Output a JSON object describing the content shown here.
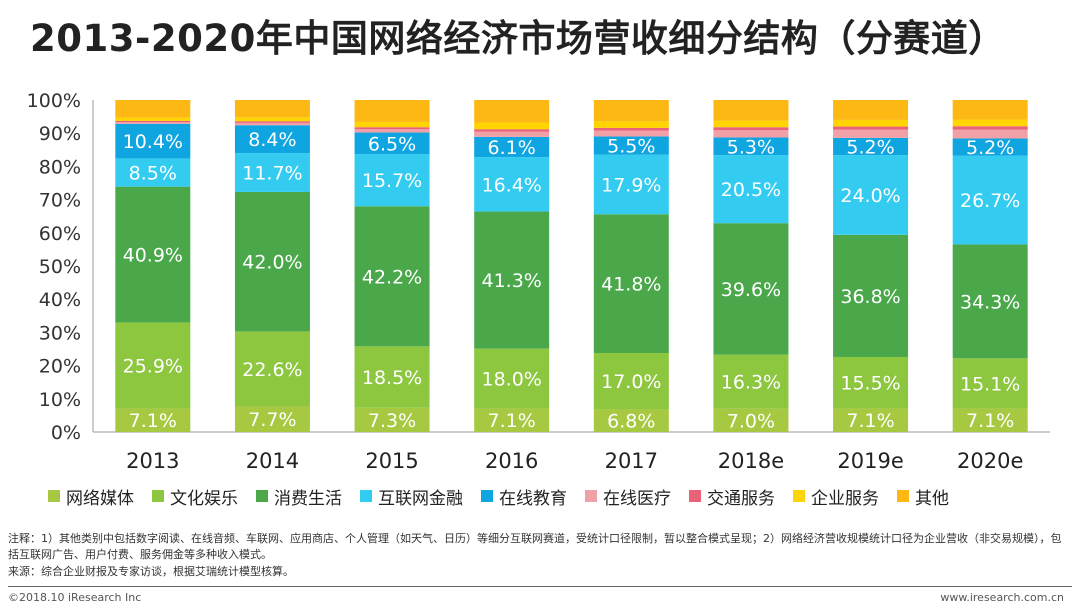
{
  "title": "2013-2020年中国网络经济市场营收细分结构（分赛道）",
  "chart_data": {
    "type": "bar",
    "stacked": true,
    "title": "2013-2020年中国网络经济市场营收细分结构（分赛道）",
    "categories": [
      "2013",
      "2014",
      "2015",
      "2016",
      "2017",
      "2018e",
      "2019e",
      "2020e"
    ],
    "y_ticks": [
      "0%",
      "10%",
      "20%",
      "30%",
      "40%",
      "50%",
      "60%",
      "70%",
      "80%",
      "90%",
      "100%"
    ],
    "ylim": [
      0,
      100
    ],
    "legend_position": "bottom",
    "series": [
      {
        "name": "网络媒体",
        "color": "#a7c942",
        "values": [
          7.1,
          7.7,
          7.3,
          7.1,
          6.8,
          7.0,
          7.1,
          7.1
        ],
        "labels": [
          "7.1%",
          "7.7%",
          "7.3%",
          "7.1%",
          "6.8%",
          "7.0%",
          "7.1%",
          "7.1%"
        ]
      },
      {
        "name": "文化娱乐",
        "color": "#8dc63f",
        "values": [
          25.9,
          22.6,
          18.5,
          18.0,
          17.0,
          16.3,
          15.5,
          15.1
        ],
        "labels": [
          "25.9%",
          "22.6%",
          "18.5%",
          "18.0%",
          "17.0%",
          "16.3%",
          "15.5%",
          "15.1%"
        ]
      },
      {
        "name": "消费生活",
        "color": "#4aa84a",
        "values": [
          40.9,
          42.0,
          42.2,
          41.3,
          41.8,
          39.6,
          36.8,
          34.3
        ],
        "labels": [
          "40.9%",
          "42.0%",
          "42.2%",
          "41.3%",
          "41.8%",
          "39.6%",
          "36.8%",
          "34.3%"
        ]
      },
      {
        "name": "互联网金融",
        "color": "#33ccf0",
        "values": [
          8.5,
          11.7,
          15.7,
          16.4,
          17.9,
          20.5,
          24.0,
          26.7
        ],
        "labels": [
          "8.5%",
          "11.7%",
          "15.7%",
          "16.4%",
          "17.9%",
          "20.5%",
          "24.0%",
          "26.7%"
        ]
      },
      {
        "name": "在线教育",
        "color": "#0fa5e0",
        "values": [
          10.4,
          8.4,
          6.5,
          6.1,
          5.5,
          5.3,
          5.2,
          5.2
        ],
        "labels": [
          "10.4%",
          "8.4%",
          "6.5%",
          "6.1%",
          "5.5%",
          "5.3%",
          "5.2%",
          "5.2%"
        ]
      },
      {
        "name": "在线医疗",
        "color": "#f2a0a8",
        "values": [
          0.5,
          0.7,
          1.0,
          1.6,
          1.8,
          2.2,
          2.5,
          2.7
        ],
        "labels": []
      },
      {
        "name": "交通服务",
        "color": "#e8627a",
        "values": [
          0.4,
          0.5,
          0.6,
          0.7,
          0.8,
          0.9,
          0.9,
          1.0
        ],
        "labels": []
      },
      {
        "name": "企业服务",
        "color": "#ffd400",
        "values": [
          1.0,
          1.2,
          1.6,
          2.0,
          2.0,
          2.0,
          2.0,
          2.0
        ],
        "labels": []
      },
      {
        "name": "其他",
        "color": "#fdb813",
        "values": [
          5.3,
          5.2,
          6.6,
          6.8,
          6.4,
          6.2,
          6.0,
          5.9
        ],
        "labels": []
      }
    ]
  },
  "notes": {
    "line1": "注释：1）其他类别中包括数字阅读、在线音频、车联网、应用商店、个人管理（如天气、日历）等细分互联网赛道，受统计口径限制，暂以整合模式呈现；2）网络经济营收规模统计口径为企业营收（非交易规模），包括互联网广告、用户付费、服务佣金等多种收入模式。",
    "line2": "来源：综合企业财报及专家访谈，根据艾瑞统计模型核算。"
  },
  "footer": {
    "copyright": "©2018.10 iResearch Inc",
    "website": "www.iresearch.com.cn"
  }
}
